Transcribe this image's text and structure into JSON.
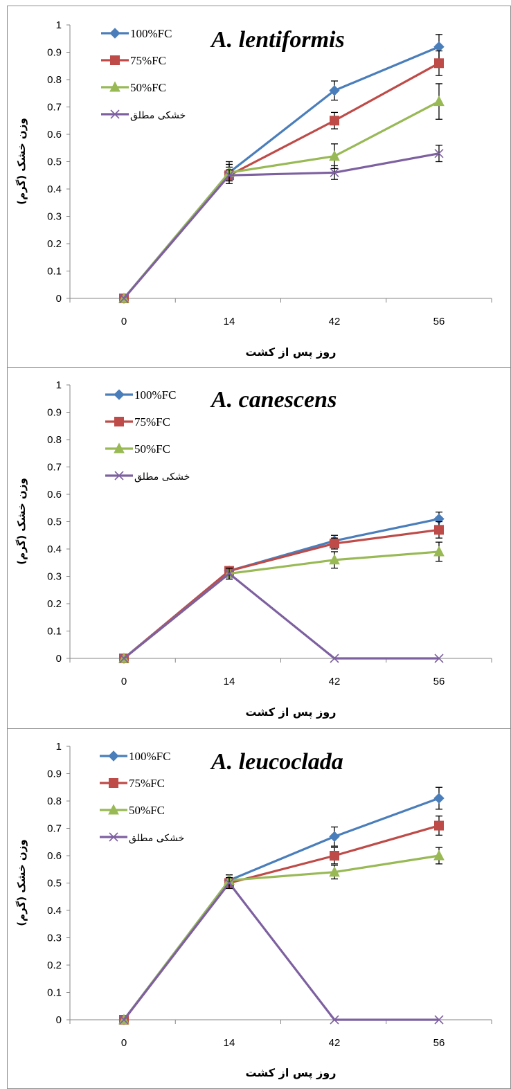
{
  "chart_data": [
    {
      "type": "line",
      "title": "A. lentiformis",
      "xlabel": "روز پس از کشت",
      "ylabel": "وزن خشک (گرم)",
      "categories": [
        "0",
        "14",
        "42",
        "56"
      ],
      "ylim": [
        0,
        1
      ],
      "yticks": [
        "0",
        "0.1",
        "0.2",
        "0.3",
        "0.4",
        "0.5",
        "0.6",
        "0.7",
        "0.8",
        "0.9",
        "1"
      ],
      "legend": "top-left",
      "grid": false,
      "series": [
        {
          "name": "100%FC",
          "values": [
            0,
            0.46,
            0.76,
            0.92
          ],
          "errors": [
            0,
            0.04,
            0.035,
            0.045
          ],
          "color": "#4a7ebb",
          "marker": "diamond"
        },
        {
          "name": "75%FC",
          "values": [
            0,
            0.45,
            0.65,
            0.86
          ],
          "errors": [
            0,
            0.03,
            0.03,
            0.045
          ],
          "color": "#be4b48",
          "marker": "square"
        },
        {
          "name": "50%FC",
          "values": [
            0,
            0.46,
            0.52,
            0.72
          ],
          "errors": [
            0,
            0.03,
            0.045,
            0.065
          ],
          "color": "#98b954",
          "marker": "triangle"
        },
        {
          "name": "خشکی مطلق",
          "values": [
            0,
            0.45,
            0.46,
            0.53
          ],
          "errors": [
            0,
            0.02,
            0.025,
            0.03
          ],
          "color": "#7d60a0",
          "marker": "x"
        }
      ]
    },
    {
      "type": "line",
      "title": "A. canescens",
      "xlabel": "روز پس از کشت",
      "ylabel": "وزن خشک (گرم)",
      "categories": [
        "0",
        "14",
        "42",
        "56"
      ],
      "ylim": [
        0,
        1
      ],
      "yticks": [
        "0",
        "0.1",
        "0.2",
        "0.3",
        "0.4",
        "0.5",
        "0.6",
        "0.7",
        "0.8",
        "0.9",
        "1"
      ],
      "legend": "top-left",
      "grid": false,
      "series": [
        {
          "name": "100%FC",
          "values": [
            0,
            0.32,
            0.43,
            0.51
          ],
          "errors": [
            0,
            0.015,
            0.02,
            0.025
          ],
          "color": "#4a7ebb",
          "marker": "diamond"
        },
        {
          "name": "75%FC",
          "values": [
            0,
            0.32,
            0.42,
            0.47
          ],
          "errors": [
            0,
            0.015,
            0.02,
            0.03
          ],
          "color": "#be4b48",
          "marker": "square"
        },
        {
          "name": "50%FC",
          "values": [
            0,
            0.31,
            0.36,
            0.39
          ],
          "errors": [
            0,
            0.02,
            0.03,
            0.035
          ],
          "color": "#98b954",
          "marker": "triangle"
        },
        {
          "name": "خشکی مطلق",
          "values": [
            0,
            0.31,
            0,
            0
          ],
          "errors": [
            0,
            0.02,
            0,
            0
          ],
          "color": "#7d60a0",
          "marker": "x"
        }
      ]
    },
    {
      "type": "line",
      "title": "A. leucoclada",
      "xlabel": "روز پس از کشت",
      "ylabel": "وزن خشک (گرم)",
      "categories": [
        "0",
        "14",
        "42",
        "56"
      ],
      "ylim": [
        0,
        1
      ],
      "yticks": [
        "0",
        "0.1",
        "0.2",
        "0.3",
        "0.4",
        "0.5",
        "0.6",
        "0.7",
        "0.8",
        "0.9",
        "1"
      ],
      "legend": "top-left",
      "grid": false,
      "series": [
        {
          "name": "100%FC",
          "values": [
            0,
            0.51,
            0.67,
            0.81
          ],
          "errors": [
            0,
            0.02,
            0.035,
            0.04
          ],
          "color": "#4a7ebb",
          "marker": "diamond"
        },
        {
          "name": "75%FC",
          "values": [
            0,
            0.5,
            0.6,
            0.71
          ],
          "errors": [
            0,
            0.02,
            0.03,
            0.035
          ],
          "color": "#be4b48",
          "marker": "square"
        },
        {
          "name": "50%FC",
          "values": [
            0,
            0.51,
            0.54,
            0.6
          ],
          "errors": [
            0,
            0.02,
            0.025,
            0.03
          ],
          "color": "#98b954",
          "marker": "triangle"
        },
        {
          "name": "خشکی مطلق",
          "values": [
            0,
            0.5,
            0,
            0
          ],
          "errors": [
            0,
            0.02,
            0,
            0
          ],
          "color": "#7d60a0",
          "marker": "x"
        }
      ]
    }
  ]
}
